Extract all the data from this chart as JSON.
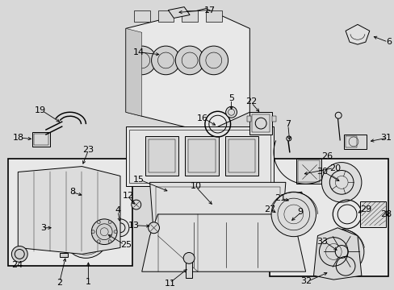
{
  "bg_color": "#d8d8d8",
  "fig_width": 4.89,
  "fig_height": 3.6,
  "dpi": 100,
  "font_size": 7.5,
  "lw": 0.7,
  "label_color": "#000000",
  "line_color": "#000000"
}
